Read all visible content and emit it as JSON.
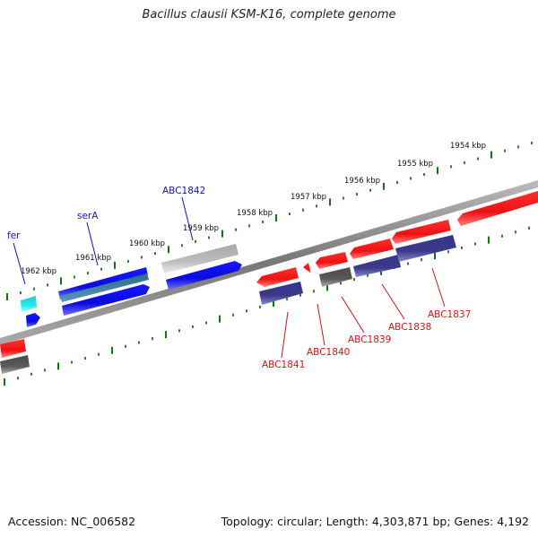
{
  "title": "Bacillus clausii KSM-K16, complete genome",
  "footer": {
    "accession": "Accession: NC_006582",
    "summary": "Topology: circular; Length: 4,303,871 bp; Genes: 4,192"
  },
  "tick_labels": [
    "1962 kbp",
    "1961 kbp",
    "1960 kbp",
    "1959 kbp",
    "1958 kbp",
    "1957 kbp",
    "1956 kbp",
    "1955 kbp",
    "1954 kbp"
  ],
  "gene_labels": {
    "fer": "fer",
    "serA": "serA",
    "ABC1842": "ABC1842",
    "ABC1841": "ABC1841",
    "ABC1840": "ABC1840",
    "ABC1839": "ABC1839",
    "ABC1838": "ABC1838",
    "ABC1837": "ABC1837"
  },
  "colors": {
    "forward_label": "#1111cc",
    "reverse_label": "#dd1111",
    "gene_red": "#ee1111",
    "gene_blue": "#1111ee",
    "gene_navy": "#3a3a8a",
    "gene_gray": "#555555",
    "gene_light_gray": "#bbbbbb",
    "gene_cyan": "#22dddd",
    "gene_teal": "#3a7a9a",
    "tick_green": "#117711",
    "backbone": "#888888"
  }
}
